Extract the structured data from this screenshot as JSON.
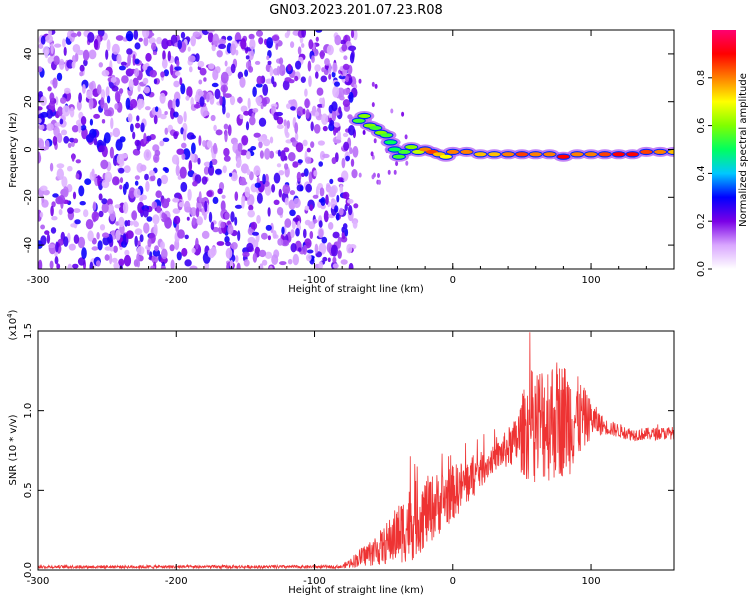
{
  "title": "GN03.2023.201.07.23.R08",
  "chart_data": [
    {
      "type": "heatmap",
      "xlabel": "Height of straight line (km)",
      "ylabel": "Frequency (Hz)",
      "xlim": [
        -300,
        160
      ],
      "ylim": [
        -50,
        50
      ],
      "x_ticks": [
        -300,
        -200,
        -100,
        0,
        100
      ],
      "y_ticks": [
        -40,
        -20,
        0,
        20,
        40
      ],
      "colorbar": {
        "label": "Normalized spectral amplitude",
        "range": [
          0,
          1
        ],
        "ticks": [
          "0.0",
          "0.2",
          "0.4",
          "0.6",
          "0.8"
        ],
        "colors": [
          "#ffffff",
          "#d9a6ff",
          "#7a00e6",
          "#0000ff",
          "#00c8ff",
          "#00ff60",
          "#80ff00",
          "#ffff00",
          "#ff8000",
          "#ff0000",
          "#ff0070"
        ]
      },
      "noise_region_x": [
        -300,
        -70
      ],
      "signal_track": [
        {
          "x": -68,
          "f": 12,
          "a": 0.55
        },
        {
          "x": -64,
          "f": 14,
          "a": 0.6
        },
        {
          "x": -60,
          "f": 10,
          "a": 0.6
        },
        {
          "x": -56,
          "f": 9,
          "a": 0.55
        },
        {
          "x": -52,
          "f": 7,
          "a": 0.6
        },
        {
          "x": -48,
          "f": 6,
          "a": 0.55
        },
        {
          "x": -45,
          "f": 3,
          "a": 0.5
        },
        {
          "x": -42,
          "f": 0,
          "a": 0.5
        },
        {
          "x": -39,
          "f": -3,
          "a": 0.55
        },
        {
          "x": -35,
          "f": -1,
          "a": 0.55
        },
        {
          "x": -30,
          "f": 1,
          "a": 0.6
        },
        {
          "x": -25,
          "f": -1,
          "a": 0.65
        },
        {
          "x": -20,
          "f": 0,
          "a": 0.8
        },
        {
          "x": -15,
          "f": -1,
          "a": 0.85
        },
        {
          "x": -10,
          "f": -2,
          "a": 0.75
        },
        {
          "x": -5,
          "f": -3,
          "a": 0.7
        },
        {
          "x": 0,
          "f": -1,
          "a": 0.8
        },
        {
          "x": 10,
          "f": -1,
          "a": 0.8
        },
        {
          "x": 20,
          "f": -2,
          "a": 0.75
        },
        {
          "x": 30,
          "f": -2,
          "a": 0.75
        },
        {
          "x": 40,
          "f": -2,
          "a": 0.8
        },
        {
          "x": 50,
          "f": -2,
          "a": 0.85
        },
        {
          "x": 60,
          "f": -2,
          "a": 0.8
        },
        {
          "x": 70,
          "f": -2,
          "a": 0.8
        },
        {
          "x": 80,
          "f": -3,
          "a": 0.9
        },
        {
          "x": 90,
          "f": -2,
          "a": 0.8
        },
        {
          "x": 100,
          "f": -2,
          "a": 0.8
        },
        {
          "x": 110,
          "f": -2,
          "a": 0.85
        },
        {
          "x": 120,
          "f": -2,
          "a": 0.9
        },
        {
          "x": 130,
          "f": -2,
          "a": 0.9
        },
        {
          "x": 140,
          "f": -1,
          "a": 0.85
        },
        {
          "x": 150,
          "f": -1,
          "a": 0.8
        },
        {
          "x": 160,
          "f": -1,
          "a": 0.75
        }
      ]
    },
    {
      "type": "line",
      "xlabel": "Height of straight line (km)",
      "ylabel": "SNR (10 * v/v)",
      "y_multiplier_label": "(x10",
      "y_multiplier_exp": "4",
      "xlim": [
        -300,
        160
      ],
      "ylim": [
        0,
        1.5
      ],
      "x_ticks": [
        -300,
        -200,
        -100,
        0,
        100
      ],
      "y_ticks": [
        "0.0",
        "0.5",
        "1.0",
        "1.5"
      ],
      "series_color": "#ee3333",
      "envelope": [
        {
          "x": -300,
          "mean": 0.02,
          "amp": 0.01
        },
        {
          "x": -80,
          "mean": 0.02,
          "amp": 0.01
        },
        {
          "x": -50,
          "mean": 0.15,
          "amp": 0.12
        },
        {
          "x": -30,
          "mean": 0.3,
          "amp": 0.25
        },
        {
          "x": -10,
          "mean": 0.42,
          "amp": 0.2
        },
        {
          "x": 10,
          "mean": 0.55,
          "amp": 0.15
        },
        {
          "x": 30,
          "mean": 0.7,
          "amp": 0.08
        },
        {
          "x": 45,
          "mean": 0.8,
          "amp": 0.15
        },
        {
          "x": 55,
          "mean": 0.9,
          "amp": 0.35
        },
        {
          "x": 70,
          "mean": 0.95,
          "amp": 0.4
        },
        {
          "x": 85,
          "mean": 0.95,
          "amp": 0.35
        },
        {
          "x": 100,
          "mean": 0.95,
          "amp": 0.12
        },
        {
          "x": 110,
          "mean": 0.9,
          "amp": 0.05
        },
        {
          "x": 130,
          "mean": 0.85,
          "amp": 0.04
        },
        {
          "x": 160,
          "mean": 0.86,
          "amp": 0.04
        }
      ]
    }
  ]
}
